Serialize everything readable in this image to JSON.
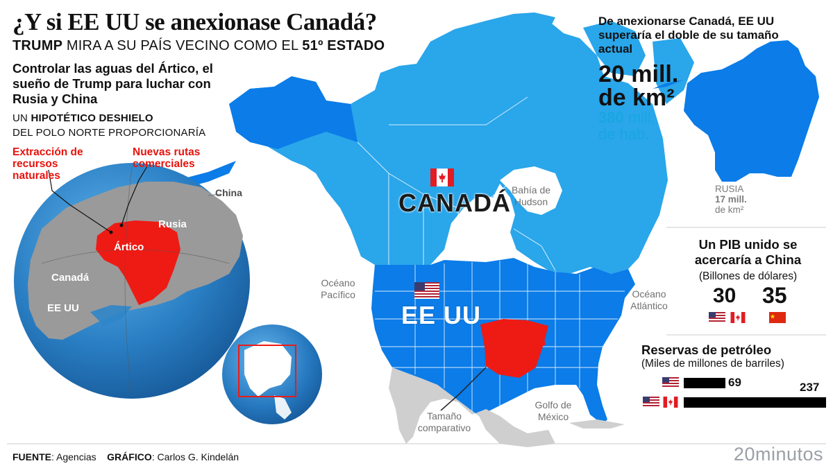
{
  "header": {
    "title": "¿Y si EE UU se anexionase Canadá?",
    "subtitle_bold1": "TRUMP",
    "subtitle_mid": " MIRA A SU PAÍS VECINO COMO EL ",
    "subtitle_bold2": "51º ESTADO"
  },
  "arctic": {
    "title": "Controlar las aguas del Ártico, el sueño de Trump para luchar con Rusia y China",
    "thaw_line1_pre": "UN ",
    "thaw_line1_bold": "HIPOTÉTICO DESHIELO",
    "thaw_line2": "DEL POLO NORTE PROPORCIONARÍA",
    "callout_left": "Extracción de recursos naturales",
    "callout_right": "Nuevas rutas comerciales",
    "globe_labels": {
      "china": "China",
      "rusia": "Rusia",
      "artico": "Ártico",
      "canada": "Canadá",
      "eeuu": "EE UU"
    }
  },
  "map": {
    "canada_label": "CANADÁ",
    "usa_label": "EE UU",
    "hudson": "Bahía de Hudson",
    "pacific": "Océano Pacífico",
    "atlantic": "Océano Atlántico",
    "gulf": "Golfo de México",
    "spain_note": "Tamaño comparativo"
  },
  "area_panel": {
    "text": "De anexionarse Canadá, EE UU superaría el doble de su tamaño actual",
    "area_line1": "20 mill.",
    "area_line2": "de km²",
    "pop_bold": "380",
    "pop_rest1": " mill.",
    "pop_line2": "de hab.",
    "russia_line1": "RUSIA",
    "russia_line2": "17 mill.",
    "russia_line3": "de km²"
  },
  "gdp": {
    "title": "Un PIB unido se acercaría a China",
    "subtitle": "(Billones de dólares)",
    "usa_canada_value": 30,
    "china_value": 35
  },
  "oil": {
    "title": "Reservas de petróleo",
    "subtitle": "(Miles de millones de barriles)",
    "bars": [
      {
        "label": "EE UU",
        "value": 69
      },
      {
        "label": "EE UU + Canadá",
        "value": 237
      }
    ]
  },
  "colors": {
    "canada": "#2aa6ea",
    "usa": "#0b7ce8",
    "red": "#ee1a14",
    "globe_ocean": "#2f86c9",
    "globe_land": "#9a9a9a"
  },
  "footer": {
    "source_label": "FUENTE",
    "source_value": ": Agencias",
    "graphic_label": "GRÁFICO",
    "graphic_value": ": Carlos G. Kindelán",
    "brand": "20minutos"
  }
}
